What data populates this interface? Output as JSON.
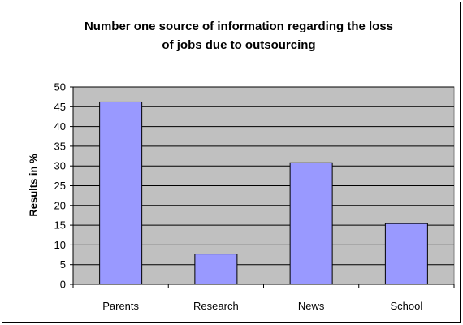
{
  "chart_data": {
    "type": "bar",
    "title_lines": [
      "Number one source of information regarding the loss",
      "of jobs due to outsourcing"
    ],
    "xlabel": "",
    "ylabel": "Results in %",
    "categories": [
      "Parents",
      "Research",
      "News",
      "School"
    ],
    "values": [
      46.2,
      7.7,
      30.8,
      15.4
    ],
    "ylim": [
      0,
      50
    ],
    "yticks": [
      "0",
      "5",
      "10",
      "15",
      "20",
      "25",
      "30",
      "35",
      "40",
      "45",
      "50"
    ],
    "grid": true,
    "legend": "none",
    "colors": {
      "bar_fill": "#9999ff",
      "bar_stroke": "#000000",
      "plot_background": "#c0c0c0",
      "gridline": "#000000"
    }
  }
}
